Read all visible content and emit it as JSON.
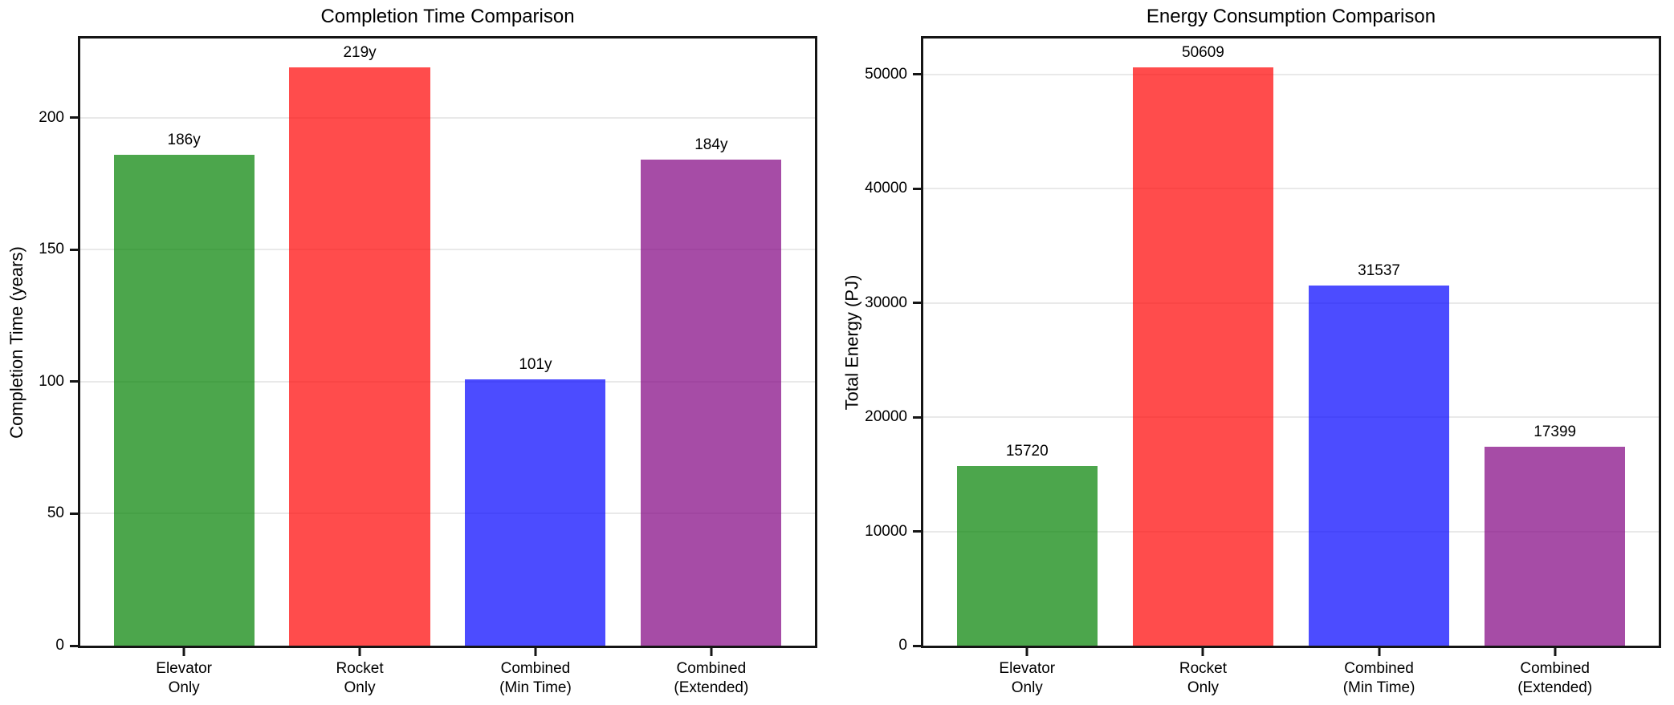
{
  "figure": {
    "background_color": "#ffffff",
    "text_color": "#000000",
    "spine_color": "#151515",
    "gridline_color": "#e9e9e9"
  },
  "chart_data": [
    {
      "type": "bar",
      "title": "Completion Time Comparison",
      "xlabel": "",
      "ylabel": "Completion Time (years)",
      "categories": [
        "Elevator\nOnly",
        "Rocket\nOnly",
        "Combined\n(Min Time)",
        "Combined\n(Extended)"
      ],
      "values": [
        186,
        219,
        101,
        184
      ],
      "bar_labels": [
        "186y",
        "219y",
        "101y",
        "184y"
      ],
      "bar_colors": [
        "rgba(0,128,0,0.7)",
        "rgba(255,0,0,0.7)",
        "rgba(0,0,255,0.7)",
        "rgba(128,0,128,0.7)"
      ],
      "bar_color_names": [
        "green",
        "red",
        "blue",
        "purple"
      ],
      "yticks": [
        0,
        50,
        100,
        150,
        200
      ],
      "ylim": [
        0,
        230
      ],
      "bar_width_fraction": 0.8,
      "grid": "horizontal",
      "legend": null
    },
    {
      "type": "bar",
      "title": "Energy Consumption Comparison",
      "xlabel": "",
      "ylabel": "Total Energy (PJ)",
      "categories": [
        "Elevator\nOnly",
        "Rocket\nOnly",
        "Combined\n(Min Time)",
        "Combined\n(Extended)"
      ],
      "values": [
        15720,
        50609,
        31537,
        17399
      ],
      "bar_labels": [
        "15720",
        "50609",
        "31537",
        "17399"
      ],
      "bar_colors": [
        "rgba(0,128,0,0.7)",
        "rgba(255,0,0,0.7)",
        "rgba(0,0,255,0.7)",
        "rgba(128,0,128,0.7)"
      ],
      "bar_color_names": [
        "green",
        "red",
        "blue",
        "purple"
      ],
      "yticks": [
        0,
        10000,
        20000,
        30000,
        40000,
        50000
      ],
      "ylim": [
        0,
        53140
      ],
      "bar_width_fraction": 0.8,
      "grid": "horizontal",
      "legend": null
    }
  ]
}
